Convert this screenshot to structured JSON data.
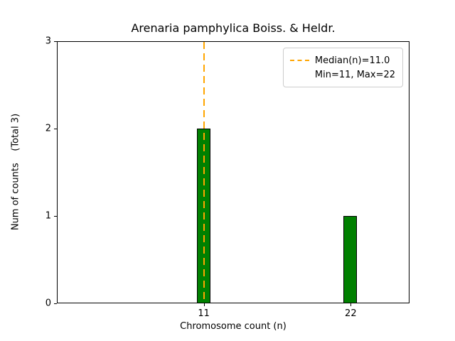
{
  "chart_data": {
    "type": "bar",
    "title": "Arenaria pamphylica Boiss. & Heldr.",
    "xlabel": "Chromosome count (n)",
    "ylabel": "Num of counts    (Total 3)",
    "x": [
      11,
      22
    ],
    "values": [
      2,
      1
    ],
    "xticks": [
      11,
      22
    ],
    "yticks": [
      0,
      1,
      2,
      3
    ],
    "xlim": [
      0,
      26.4
    ],
    "ylim": [
      0,
      3
    ],
    "bar_width": 1,
    "bar_color": "#008000",
    "bar_edge_color": "#000000",
    "median": 11.0,
    "median_line_color": "#FFA500",
    "median_line_style": "dashed",
    "legend": [
      "Median(n)=11.0",
      "Min=11, Max=22"
    ],
    "legend_position": "upper right",
    "grid": false,
    "total_counts": 3
  }
}
